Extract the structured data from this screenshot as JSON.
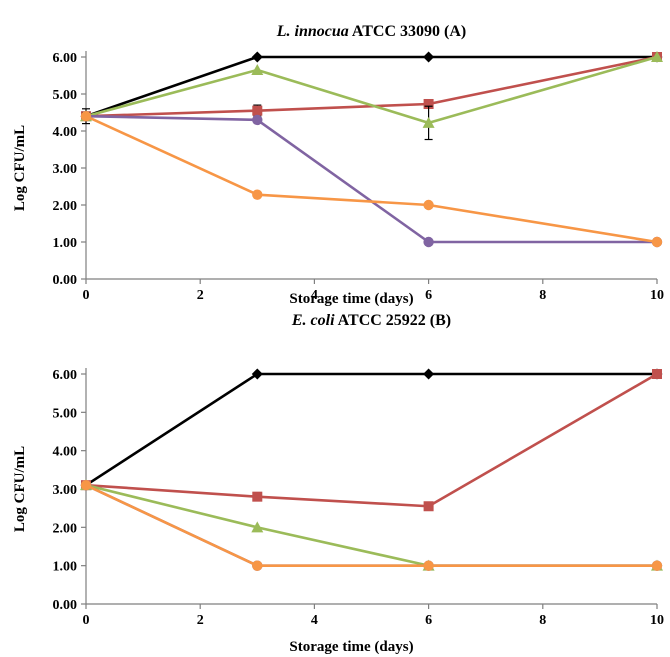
{
  "chart_data": [
    {
      "type": "line",
      "title_italic": "L. innocua",
      "title_rest": " ATCC 33090 (A)",
      "xlabel": "Storage time (days)",
      "ylabel": "Log CFU/mL",
      "xlim": [
        0,
        10
      ],
      "ylim": [
        0,
        6
      ],
      "xticks": [
        "0",
        "2",
        "4",
        "6",
        "8",
        "10"
      ],
      "yticks": [
        "0.00",
        "1.00",
        "2.00",
        "3.00",
        "4.00",
        "5.00",
        "6.00"
      ],
      "grid": false,
      "series": [
        {
          "color": "#000000",
          "marker": "diamond",
          "x": [
            0,
            3,
            6,
            10
          ],
          "y": [
            4.4,
            6.0,
            6.0,
            6.0
          ]
        },
        {
          "color": "#c0504d",
          "marker": "square",
          "x": [
            0,
            3,
            6,
            10
          ],
          "y": [
            4.4,
            4.55,
            4.73,
            6.0
          ],
          "err": [
            0.2,
            0.15,
            0.05,
            0.05
          ]
        },
        {
          "color": "#9bbb59",
          "marker": "triangle",
          "x": [
            0,
            3,
            6,
            10
          ],
          "y": [
            4.4,
            5.65,
            4.22,
            6.0
          ],
          "err": [
            0.1,
            0.05,
            0.45,
            0.05
          ]
        },
        {
          "color": "#8064a2",
          "marker": "circle",
          "x": [
            0,
            3,
            6,
            10
          ],
          "y": [
            4.4,
            4.3,
            1.0,
            1.0
          ]
        },
        {
          "color": "#f79646",
          "marker": "circle",
          "x": [
            0,
            3,
            6,
            10
          ],
          "y": [
            4.4,
            2.28,
            2.0,
            1.0
          ]
        }
      ]
    },
    {
      "type": "line",
      "title_italic": "E. coli",
      "title_rest": " ATCC 25922 (B)",
      "xlabel": "Storage time (days)",
      "ylabel": "Log CFU/mL",
      "xlim": [
        0,
        10
      ],
      "ylim": [
        0,
        6
      ],
      "xticks": [
        "0",
        "2",
        "4",
        "6",
        "8",
        "10"
      ],
      "yticks": [
        "0.00",
        "1.00",
        "2.00",
        "3.00",
        "4.00",
        "5.00",
        "6.00"
      ],
      "grid": false,
      "series": [
        {
          "color": "#000000",
          "marker": "diamond",
          "x": [
            0,
            3,
            6,
            10
          ],
          "y": [
            3.1,
            6.0,
            6.0,
            6.0
          ]
        },
        {
          "color": "#c0504d",
          "marker": "square",
          "x": [
            0,
            3,
            6,
            10
          ],
          "y": [
            3.1,
            2.8,
            2.55,
            6.0
          ]
        },
        {
          "color": "#9bbb59",
          "marker": "triangle",
          "x": [
            0,
            3,
            6,
            10
          ],
          "y": [
            3.1,
            2.0,
            1.0,
            1.0
          ]
        },
        {
          "color": "#8064a2",
          "marker": "circle",
          "x": [
            0,
            3,
            6,
            10
          ],
          "y": [
            3.1,
            1.0,
            1.0,
            1.0
          ]
        },
        {
          "color": "#f79646",
          "marker": "circle",
          "x": [
            0,
            3,
            6,
            10
          ],
          "y": [
            3.1,
            1.0,
            1.0,
            1.0
          ]
        }
      ]
    }
  ]
}
